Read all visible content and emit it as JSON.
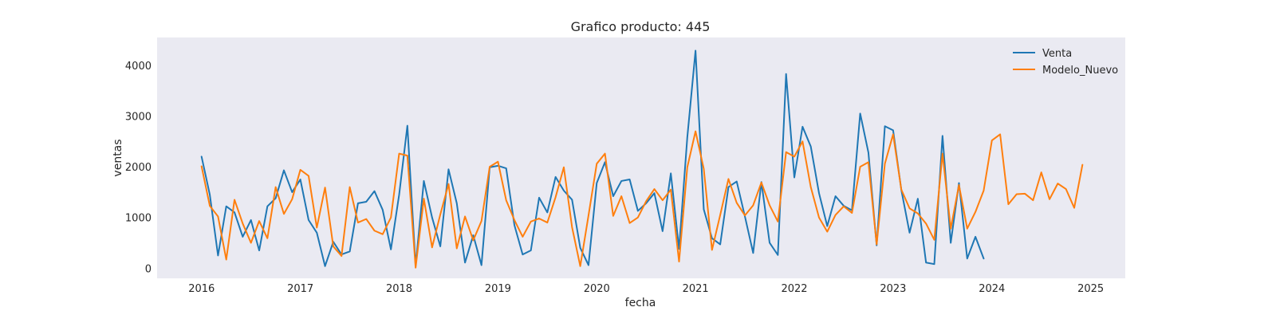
{
  "chart_data": {
    "type": "line",
    "title": "Grafico producto: 445",
    "xlabel": "fecha",
    "ylabel": "ventas",
    "xlim": [
      2015.55,
      2025.35
    ],
    "ylim": [
      -200,
      4550
    ],
    "x_ticks": [
      2016,
      2017,
      2018,
      2019,
      2020,
      2021,
      2022,
      2023,
      2024,
      2025
    ],
    "x_tick_labels": [
      "2016",
      "2017",
      "2018",
      "2019",
      "2020",
      "2021",
      "2022",
      "2023",
      "2024",
      "2025"
    ],
    "y_ticks": [
      0,
      1000,
      2000,
      3000,
      4000
    ],
    "y_tick_labels": [
      "0",
      "1000",
      "2000",
      "3000",
      "4000"
    ],
    "grid": false,
    "legend_position": "top-right",
    "background": "#eaeaf2",
    "x_start_year": 2016,
    "x_step": "monthly",
    "series": [
      {
        "name": "Venta",
        "color": "#1f77b4",
        "values": [
          2200,
          1450,
          250,
          1220,
          1100,
          620,
          950,
          350,
          1220,
          1380,
          1930,
          1500,
          1750,
          950,
          700,
          40,
          520,
          270,
          330,
          1280,
          1310,
          1520,
          1150,
          370,
          1450,
          2810,
          50,
          1720,
          1000,
          430,
          1950,
          1280,
          110,
          650,
          60,
          1990,
          2020,
          1970,
          850,
          270,
          350,
          1390,
          1100,
          1800,
          1530,
          1350,
          400,
          60,
          1680,
          2090,
          1420,
          1720,
          1750,
          1130,
          1280,
          1480,
          730,
          1870,
          380,
          2580,
          4290,
          1160,
          590,
          470,
          1600,
          1710,
          1020,
          300,
          1700,
          500,
          260,
          3830,
          1790,
          2790,
          2400,
          1480,
          830,
          1420,
          1230,
          1140,
          3050,
          2280,
          450,
          2800,
          2720,
          1540,
          700,
          1370,
          110,
          80,
          2610,
          500,
          1680,
          190,
          620,
          190
        ]
      },
      {
        "name": "Modelo_Nuevo",
        "color": "#ff7f0e",
        "values": [
          2010,
          1230,
          1020,
          170,
          1350,
          880,
          500,
          930,
          590,
          1600,
          1070,
          1360,
          1940,
          1820,
          800,
          1590,
          430,
          240,
          1600,
          900,
          970,
          740,
          670,
          1000,
          2260,
          2220,
          10,
          1370,
          410,
          1060,
          1660,
          390,
          1020,
          550,
          930,
          2000,
          2100,
          1340,
          950,
          620,
          920,
          980,
          900,
          1400,
          1990,
          810,
          40,
          1040,
          2060,
          2260,
          1030,
          1420,
          890,
          1000,
          1320,
          1560,
          1340,
          1550,
          130,
          1990,
          2700,
          1960,
          360,
          1050,
          1760,
          1290,
          1040,
          1240,
          1690,
          1240,
          920,
          2290,
          2200,
          2500,
          1600,
          1000,
          720,
          1050,
          1220,
          1090,
          2000,
          2090,
          470,
          2060,
          2640,
          1550,
          1180,
          1080,
          880,
          560,
          2260,
          780,
          1640,
          780,
          1110,
          1530,
          2520,
          2640,
          1260,
          1460,
          1470,
          1340,
          1890,
          1360,
          1670,
          1560,
          1190,
          2040
        ]
      }
    ]
  }
}
